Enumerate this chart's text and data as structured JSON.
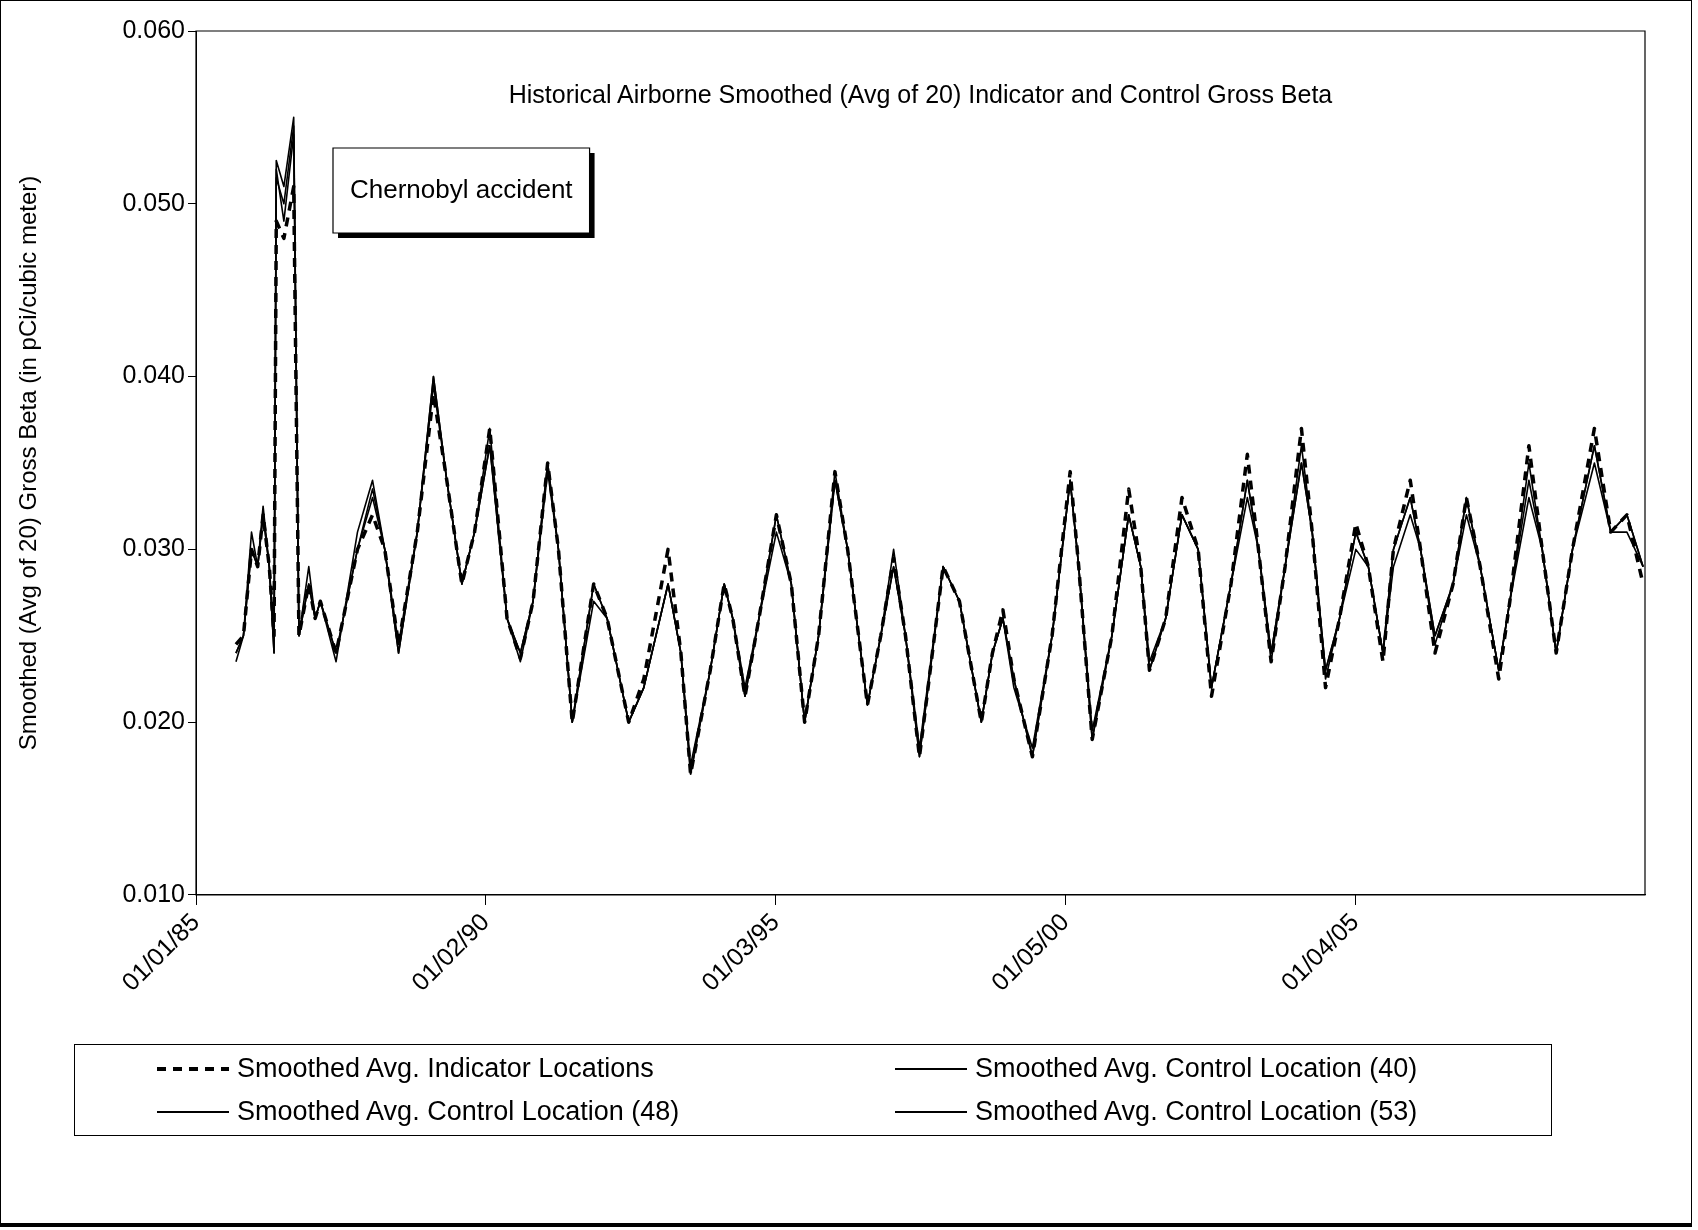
{
  "chart_data": {
    "type": "line",
    "title": "Historical Airborne Smoothed (Avg of 20) Indicator and Control Gross Beta",
    "ylabel": "Smoothed (Avg of 20) Gross Beta (in pCi/cubic meter)",
    "annotations": [
      "Chernobyl accident"
    ],
    "x": [
      "1985-09-10",
      "1985-10-27",
      "1985-12-17",
      "1986-01-25",
      "1986-02-28",
      "1986-04-08",
      "1986-05-08",
      "1986-05-22",
      "1986-07-09",
      "1986-09-09",
      "1986-10-12",
      "1986-12-13",
      "1987-01-22",
      "1987-02-24",
      "1987-06-03",
      "1987-10-16",
      "1988-01-19",
      "1988-04-05",
      "1988-07-01",
      "1988-10-27",
      "1989-02-06",
      "1989-05-01",
      "1989-08-04",
      "1989-10-23",
      "1990-01-27",
      "1990-05-16",
      "1990-08-08",
      "1990-10-27",
      "1991-01-27",
      "1991-04-05",
      "1991-07-01",
      "1991-11-13",
      "1992-02-06",
      "1992-06-21",
      "1992-09-24",
      "1993-02-24",
      "1993-05-16",
      "1993-07-16",
      "1993-11-17",
      "1994-02-13",
      "1994-04-08",
      "1994-06-24",
      "1994-09-20",
      "1995-01-08",
      "1995-04-12",
      "1995-07-05",
      "1995-10-01",
      "1996-01-12",
      "1996-04-01",
      "1996-08-04",
      "1996-10-27",
      "1997-01-16",
      "1997-04-01",
      "1997-06-28",
      "1997-11-24",
      "1998-03-07",
      "1998-07-23",
      "1998-10-01",
      "1998-12-06",
      "1999-02-13",
      "1999-06-10",
      "1999-10-12",
      "2000-02-03",
      "2000-03-28",
      "2000-06-21",
      "2000-10-23",
      "2001-02-06",
      "2001-04-23",
      "2001-06-17",
      "2001-09-27",
      "2002-01-08",
      "2002-04-20",
      "2002-07-13",
      "2002-11-13",
      "2003-02-24",
      "2003-05-05",
      "2003-07-24",
      "2003-10-20",
      "2004-01-31",
      "2004-04-08",
      "2004-07-01",
      "2004-09-27",
      "2005-01-08",
      "2005-03-28",
      "2005-06-28",
      "2005-09-02",
      "2005-12-17",
      "2006-02-20",
      "2006-05-22",
      "2006-09-13",
      "2006-12-06",
      "2007-03-03",
      "2007-06-28",
      "2007-09-06",
      "2008-01-04",
      "2008-03-28",
      "2008-06-24",
      "2008-10-05",
      "2009-02-20",
      "2009-06-03",
      "2009-09-13",
      "2009-12-24"
    ],
    "series": [
      {
        "name": "Smoothed Avg. Indicator Locations",
        "color": "#000000",
        "line_style": "dashed",
        "values": [
          0.0245,
          0.025,
          0.03,
          0.029,
          0.032,
          0.029,
          0.025,
          0.049,
          0.048,
          0.051,
          0.025,
          0.028,
          0.026,
          0.027,
          0.024,
          0.03,
          0.032,
          0.03,
          0.0245,
          0.031,
          0.039,
          0.034,
          0.028,
          0.031,
          0.037,
          0.026,
          0.0237,
          0.027,
          0.035,
          0.03,
          0.02,
          0.028,
          0.026,
          0.02,
          0.0225,
          0.03,
          0.024,
          0.017,
          0.023,
          0.028,
          0.026,
          0.0215,
          0.026,
          0.032,
          0.028,
          0.02,
          0.025,
          0.0345,
          0.03,
          0.021,
          0.025,
          0.0295,
          0.025,
          0.018,
          0.029,
          0.027,
          0.02,
          0.024,
          0.0265,
          0.0225,
          0.018,
          0.025,
          0.0345,
          0.029,
          0.019,
          0.025,
          0.0335,
          0.029,
          0.023,
          0.026,
          0.033,
          0.03,
          0.0215,
          0.028,
          0.0355,
          0.03,
          0.0235,
          0.029,
          0.037,
          0.031,
          0.022,
          0.026,
          0.0315,
          0.029,
          0.0235,
          0.03,
          0.034,
          0.03,
          0.024,
          0.028,
          0.033,
          0.029,
          0.0225,
          0.027,
          0.036,
          0.03,
          0.024,
          0.03,
          0.037,
          0.031,
          0.032,
          0.028
        ]
      },
      {
        "name": "Smoothed Avg. Control Location (40)",
        "color": "#000000",
        "line_style": "solid",
        "values": [
          0.024,
          0.025,
          0.031,
          0.029,
          0.0325,
          0.029,
          0.024,
          0.0525,
          0.051,
          0.055,
          0.025,
          0.029,
          0.026,
          0.027,
          0.0235,
          0.031,
          0.034,
          0.03,
          0.024,
          0.031,
          0.04,
          0.034,
          0.028,
          0.031,
          0.037,
          0.026,
          0.0235,
          0.027,
          0.035,
          0.03,
          0.02,
          0.028,
          0.026,
          0.02,
          0.022,
          0.028,
          0.024,
          0.017,
          0.023,
          0.028,
          0.026,
          0.0215,
          0.026,
          0.032,
          0.028,
          0.02,
          0.025,
          0.0345,
          0.03,
          0.021,
          0.025,
          0.03,
          0.025,
          0.018,
          0.029,
          0.027,
          0.02,
          0.024,
          0.026,
          0.0225,
          0.018,
          0.025,
          0.034,
          0.029,
          0.019,
          0.025,
          0.032,
          0.029,
          0.023,
          0.026,
          0.032,
          0.03,
          0.022,
          0.028,
          0.034,
          0.03,
          0.0235,
          0.029,
          0.036,
          0.031,
          0.023,
          0.026,
          0.031,
          0.029,
          0.024,
          0.03,
          0.033,
          0.03,
          0.025,
          0.028,
          0.033,
          0.029,
          0.023,
          0.027,
          0.034,
          0.03,
          0.024,
          0.03,
          0.036,
          0.031,
          0.032,
          0.029
        ]
      },
      {
        "name": "Smoothed Avg. Control Location (48)",
        "color": "#000000",
        "line_style": "solid",
        "values": [
          0.0235,
          0.025,
          0.03,
          0.029,
          0.032,
          0.029,
          0.024,
          0.052,
          0.049,
          0.054,
          0.025,
          0.028,
          0.026,
          0.027,
          0.024,
          0.03,
          0.033,
          0.03,
          0.024,
          0.031,
          0.0395,
          0.034,
          0.028,
          0.031,
          0.036,
          0.026,
          0.024,
          0.027,
          0.0345,
          0.03,
          0.02,
          0.027,
          0.026,
          0.02,
          0.022,
          0.028,
          0.024,
          0.0175,
          0.023,
          0.028,
          0.026,
          0.022,
          0.026,
          0.031,
          0.028,
          0.02,
          0.025,
          0.034,
          0.03,
          0.021,
          0.025,
          0.029,
          0.025,
          0.0185,
          0.029,
          0.027,
          0.02,
          0.024,
          0.026,
          0.022,
          0.0185,
          0.025,
          0.034,
          0.029,
          0.0195,
          0.025,
          0.032,
          0.029,
          0.0235,
          0.026,
          0.032,
          0.03,
          0.022,
          0.028,
          0.033,
          0.03,
          0.024,
          0.029,
          0.035,
          0.031,
          0.0225,
          0.026,
          0.03,
          0.029,
          0.024,
          0.029,
          0.032,
          0.03,
          0.0245,
          0.028,
          0.032,
          0.029,
          0.023,
          0.027,
          0.033,
          0.03,
          0.024,
          0.03,
          0.035,
          0.031,
          0.031,
          0.029
        ]
      },
      {
        "name": "Smoothed Avg. Control Location (53)",
        "color": "#000000",
        "line_style": "solid",
        "values": [
          0.024,
          0.025,
          0.03,
          0.029,
          0.032,
          0.029,
          0.025,
          0.0515,
          0.05,
          0.0545,
          0.025,
          0.028,
          0.026,
          0.027,
          0.024,
          0.03,
          0.0335,
          0.03,
          0.0245,
          0.031,
          0.04,
          0.034,
          0.028,
          0.031,
          0.036,
          0.026,
          0.024,
          0.027,
          0.035,
          0.03,
          0.02,
          0.028,
          0.026,
          0.02,
          0.022,
          0.028,
          0.024,
          0.017,
          0.023,
          0.028,
          0.026,
          0.0215,
          0.026,
          0.032,
          0.028,
          0.02,
          0.025,
          0.034,
          0.03,
          0.021,
          0.025,
          0.029,
          0.025,
          0.018,
          0.029,
          0.027,
          0.02,
          0.024,
          0.026,
          0.0225,
          0.018,
          0.025,
          0.034,
          0.029,
          0.019,
          0.025,
          0.032,
          0.029,
          0.023,
          0.026,
          0.032,
          0.03,
          0.022,
          0.028,
          0.034,
          0.03,
          0.024,
          0.029,
          0.035,
          0.031,
          0.023,
          0.026,
          0.031,
          0.029,
          0.024,
          0.03,
          0.033,
          0.03,
          0.025,
          0.028,
          0.033,
          0.029,
          0.023,
          0.027,
          0.035,
          0.03,
          0.024,
          0.03,
          0.036,
          0.031,
          0.032,
          0.029
        ]
      }
    ],
    "xlim": [
      "1985-01-01",
      "2010-01-05"
    ],
    "xticks": [
      {
        "value": "1985-01-01",
        "label": "01/01/85"
      },
      {
        "value": "1990-01-02",
        "label": "01/02/90"
      },
      {
        "value": "1995-01-03",
        "label": "01/03/95"
      },
      {
        "value": "2000-01-05",
        "label": "01/05/00"
      },
      {
        "value": "2005-01-04",
        "label": "01/04/05"
      }
    ],
    "ylim": [
      0.01,
      0.06
    ],
    "yticks": [
      {
        "value": 0.01,
        "label": "0.010"
      },
      {
        "value": 0.02,
        "label": "0.020"
      },
      {
        "value": 0.03,
        "label": "0.030"
      },
      {
        "value": 0.04,
        "label": "0.040"
      },
      {
        "value": 0.05,
        "label": "0.050"
      },
      {
        "value": 0.06,
        "label": "0.060"
      }
    ],
    "grid": false,
    "legend": "bottom",
    "marker": "none"
  }
}
